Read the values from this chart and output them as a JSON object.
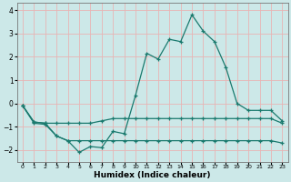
{
  "title": "",
  "xlabel": "Humidex (Indice chaleur)",
  "bg_color": "#cce8e8",
  "grid_color": "#e8b4b4",
  "line_color": "#1a7a6e",
  "xlim": [
    -0.5,
    23.5
  ],
  "ylim": [
    -2.5,
    4.3
  ],
  "xticks": [
    0,
    1,
    2,
    3,
    4,
    5,
    6,
    7,
    8,
    9,
    10,
    11,
    12,
    13,
    14,
    15,
    16,
    17,
    18,
    19,
    20,
    21,
    22,
    23
  ],
  "yticks": [
    -2,
    -1,
    0,
    1,
    2,
    3,
    4
  ],
  "line1_x": [
    0,
    1,
    2,
    3,
    4,
    5,
    6,
    7,
    8,
    9,
    10,
    11,
    12,
    13,
    14,
    15,
    16,
    17,
    18,
    19,
    20,
    21,
    22,
    23
  ],
  "line1_y": [
    -0.1,
    -0.85,
    -0.9,
    -1.4,
    -1.6,
    -2.1,
    -1.85,
    -1.9,
    -1.2,
    -1.3,
    0.35,
    2.15,
    1.9,
    2.75,
    2.65,
    3.8,
    3.1,
    2.65,
    1.55,
    0.0,
    -0.3,
    -0.3,
    -0.3,
    -0.75
  ],
  "line2_x": [
    0,
    1,
    2,
    3,
    4,
    5,
    6,
    7,
    8,
    9,
    10,
    11,
    12,
    13,
    14,
    15,
    16,
    17,
    18,
    19,
    20,
    21,
    22,
    23
  ],
  "line2_y": [
    -0.1,
    -0.8,
    -0.85,
    -0.85,
    -0.85,
    -0.85,
    -0.85,
    -0.75,
    -0.65,
    -0.65,
    -0.65,
    -0.65,
    -0.65,
    -0.65,
    -0.65,
    -0.65,
    -0.65,
    -0.65,
    -0.65,
    -0.65,
    -0.65,
    -0.65,
    -0.65,
    -0.85
  ],
  "line3_x": [
    0,
    1,
    2,
    3,
    4,
    5,
    6,
    7,
    8,
    9,
    10,
    11,
    12,
    13,
    14,
    15,
    16,
    17,
    18,
    19,
    20,
    21,
    22,
    23
  ],
  "line3_y": [
    -0.1,
    -0.8,
    -0.85,
    -1.4,
    -1.6,
    -1.6,
    -1.6,
    -1.6,
    -1.6,
    -1.6,
    -1.6,
    -1.6,
    -1.6,
    -1.6,
    -1.6,
    -1.6,
    -1.6,
    -1.6,
    -1.6,
    -1.6,
    -1.6,
    -1.6,
    -1.6,
    -1.7
  ]
}
